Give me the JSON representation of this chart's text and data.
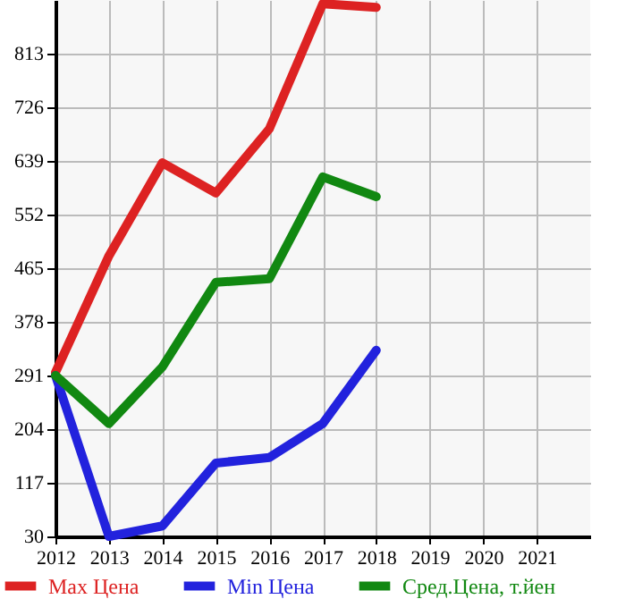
{
  "chart_data": {
    "type": "line",
    "x": [
      2012,
      2013,
      2014,
      2015,
      2016,
      2017,
      2018
    ],
    "series": [
      {
        "name": "Max Цена",
        "color": "#dd2222",
        "values": [
          296,
          485,
          636,
          587,
          691,
          894,
          888
        ]
      },
      {
        "name": "Min Цена",
        "color": "#2222dd",
        "values": [
          291,
          30,
          47,
          149,
          158,
          213,
          332
        ]
      },
      {
        "name": "Сред.Цена, т.йен",
        "color": "#118811",
        "values": [
          291,
          213,
          305,
          442,
          448,
          613,
          581
        ]
      }
    ],
    "xlim": [
      2012,
      2022
    ],
    "xticks": [
      2012,
      2013,
      2014,
      2015,
      2016,
      2017,
      2018,
      2019,
      2020,
      2021
    ],
    "ylim": [
      30,
      900
    ],
    "yticks": [
      30,
      117,
      204,
      291,
      378,
      465,
      552,
      639,
      726,
      813
    ],
    "grid": true,
    "legend": "bottom",
    "marker": "none",
    "line_style": "solid"
  }
}
